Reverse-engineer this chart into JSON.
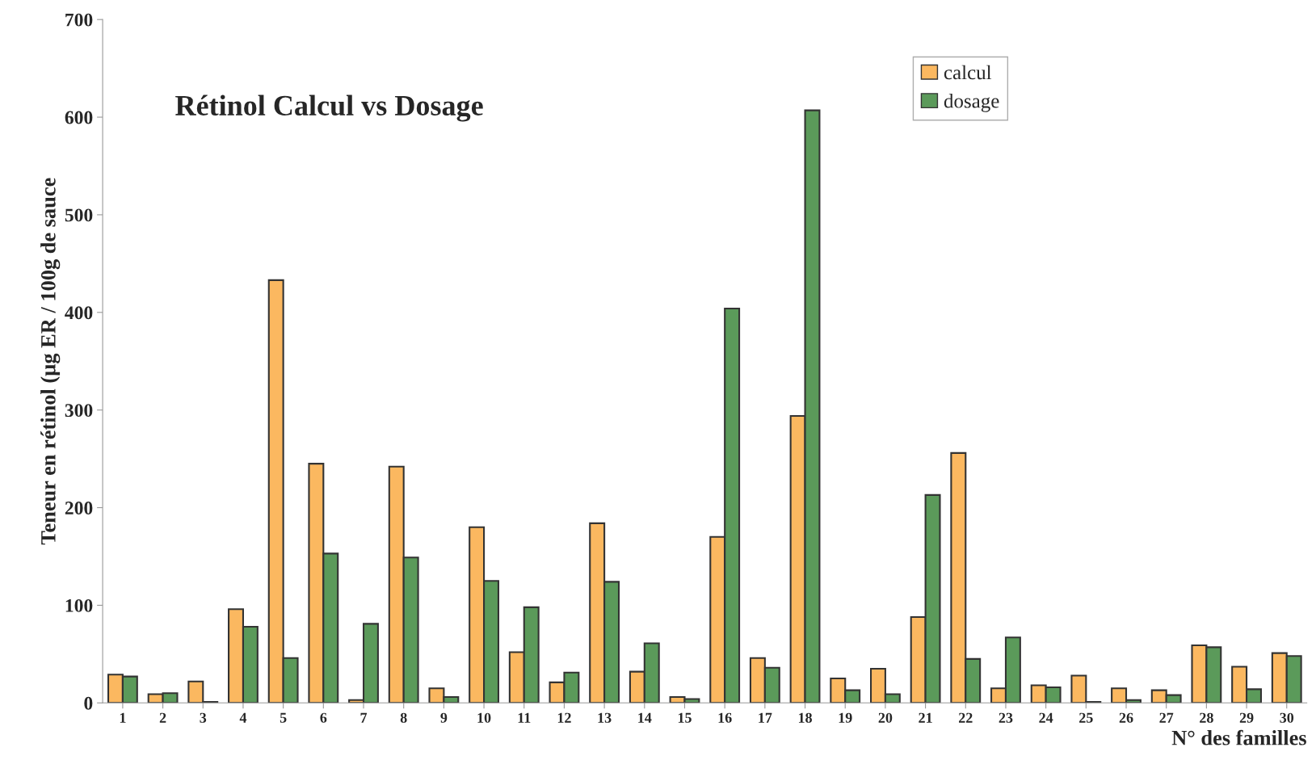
{
  "chart_data": {
    "type": "bar",
    "title": "Rétinol Calcul vs Dosage",
    "xlabel": "N° des familles",
    "ylabel": "Teneur en rétinol (µg ER / 100g de sauce",
    "categories": [
      "1",
      "2",
      "3",
      "4",
      "5",
      "6",
      "7",
      "8",
      "9",
      "10",
      "11",
      "12",
      "13",
      "14",
      "15",
      "16",
      "17",
      "18",
      "19",
      "20",
      "21",
      "22",
      "23",
      "24",
      "25",
      "26",
      "27",
      "28",
      "29",
      "30"
    ],
    "series": [
      {
        "name": "calcul",
        "color": "#fbb860",
        "values": [
          29,
          9,
          22,
          96,
          433,
          245,
          3,
          242,
          15,
          180,
          52,
          21,
          184,
          32,
          6,
          170,
          46,
          294,
          25,
          35,
          88,
          256,
          15,
          18,
          28,
          15,
          13,
          59,
          37,
          51
        ]
      },
      {
        "name": "dosage",
        "color": "#5b9a5a",
        "values": [
          27,
          10,
          1,
          78,
          46,
          153,
          81,
          149,
          6,
          125,
          98,
          31,
          124,
          61,
          4,
          404,
          36,
          607,
          13,
          9,
          213,
          45,
          67,
          16,
          1,
          3,
          8,
          57,
          14,
          48
        ]
      }
    ],
    "ylim": [
      0,
      700
    ],
    "yticks": [
      0,
      100,
      200,
      300,
      400,
      500,
      600,
      700
    ],
    "grid": false,
    "legend": "top right"
  }
}
